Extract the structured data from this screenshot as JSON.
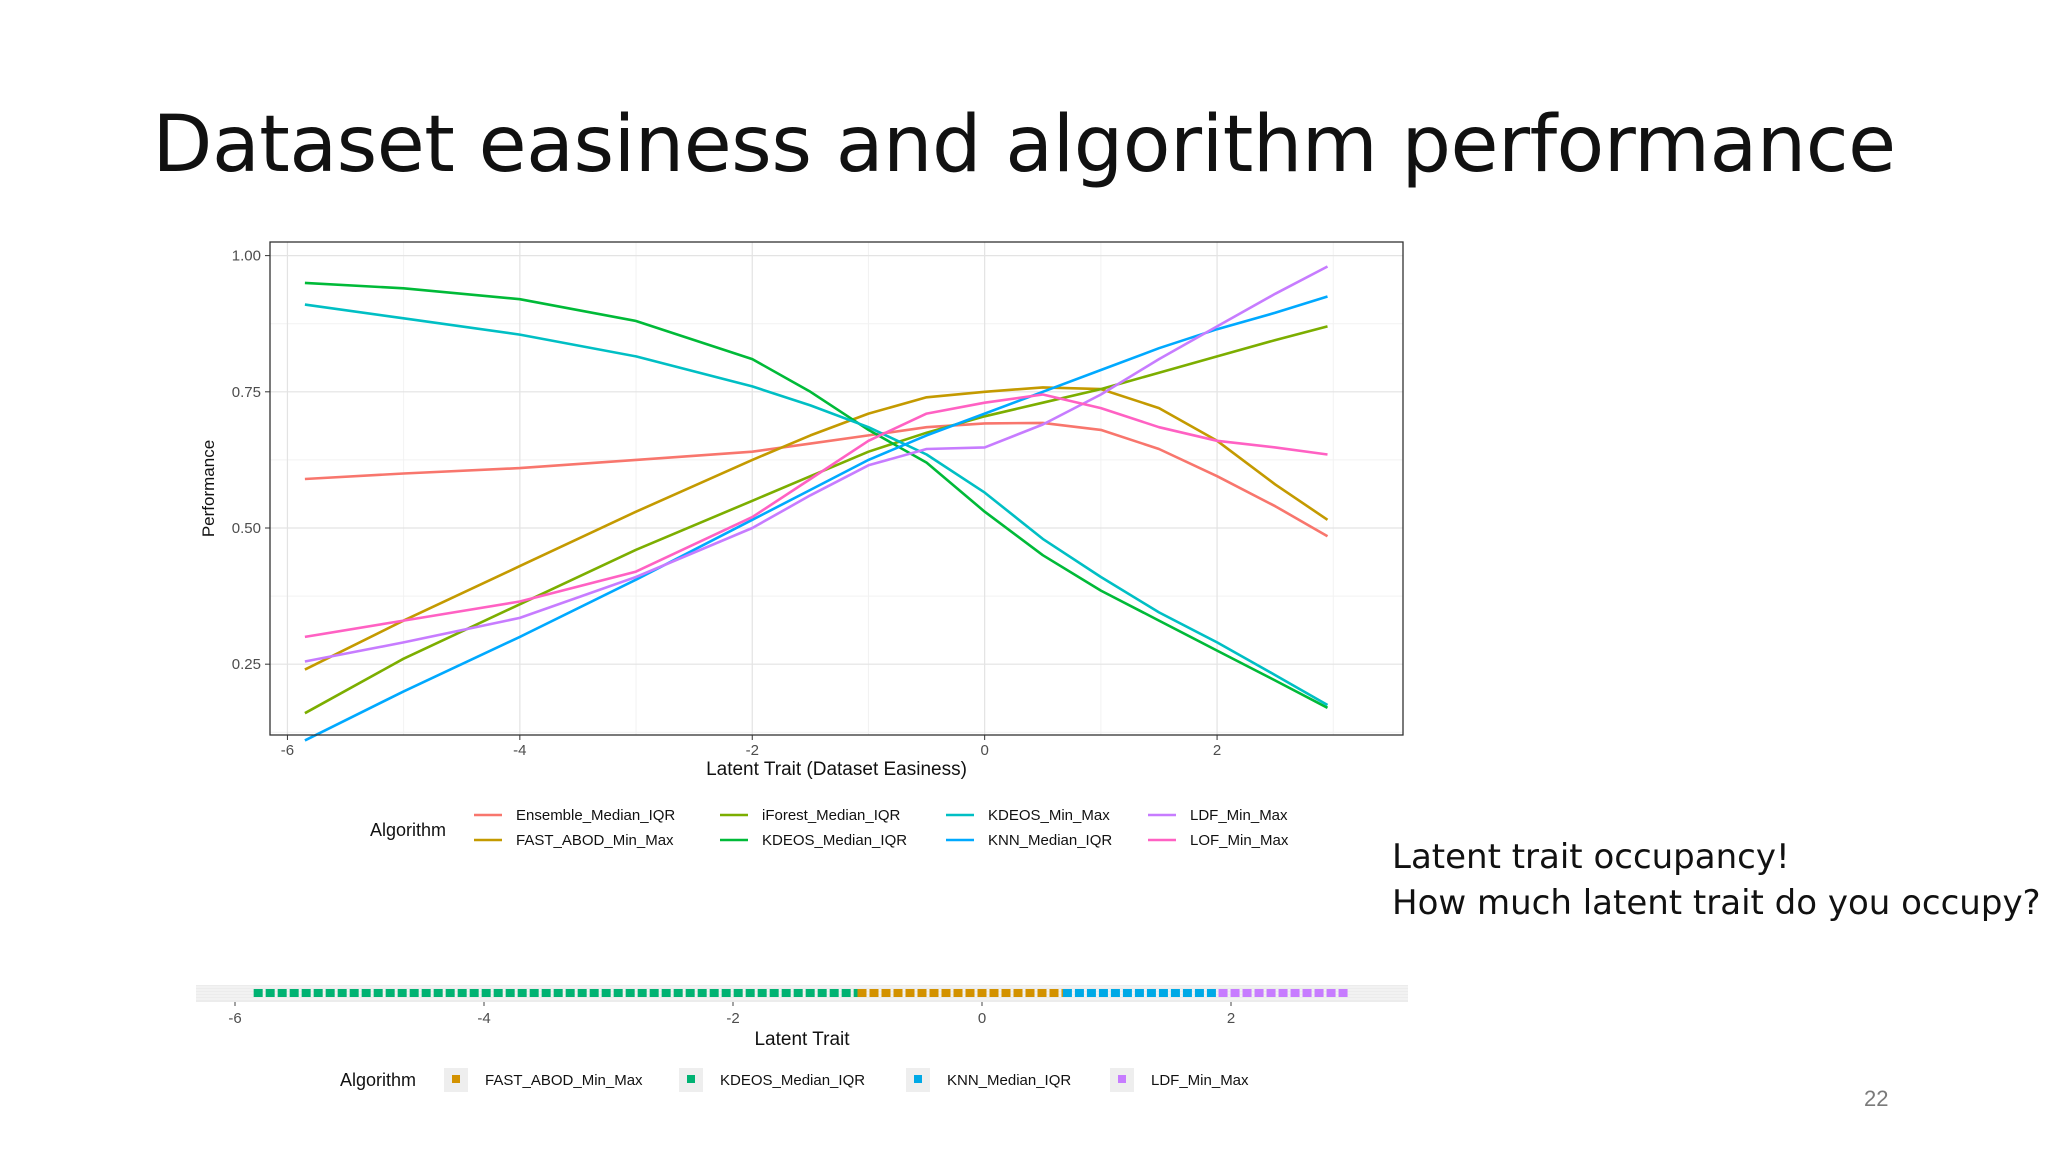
{
  "slide": {
    "title": "Dataset easiness and algorithm performance",
    "note_line1": "Latent trait occupancy!",
    "note_line2": "How much latent trait do you occupy?",
    "page_number": "22"
  },
  "chart_data": [
    {
      "type": "line",
      "title": "",
      "xlabel": "Latent Trait (Dataset Easiness)",
      "ylabel": "Performance",
      "xlim": [
        -6.15,
        3.6
      ],
      "ylim": [
        0.12,
        1.025
      ],
      "x_ticks": [
        -6,
        -4,
        -2,
        0,
        2
      ],
      "y_ticks": [
        0.25,
        0.5,
        0.75,
        1.0
      ],
      "x_tick_labels": [
        "-6",
        "-4",
        "-2",
        "0",
        "2"
      ],
      "y_tick_labels": [
        "0.25",
        "0.50",
        "0.75",
        "1.00"
      ],
      "grid": true,
      "legend_position": "bottom",
      "legend_title": "Algorithm",
      "x": [
        -5.85,
        -5,
        -4,
        -3,
        -2,
        -1.5,
        -1,
        -0.5,
        0,
        0.5,
        1,
        1.5,
        2,
        2.5,
        2.95
      ],
      "series": [
        {
          "name": "Ensemble_Median_IQR",
          "color": "#F8766D",
          "values": [
            0.59,
            0.6,
            0.61,
            0.625,
            0.64,
            0.655,
            0.67,
            0.685,
            0.692,
            0.693,
            0.68,
            0.645,
            0.595,
            0.54,
            0.485
          ]
        },
        {
          "name": "FAST_ABOD_Min_Max",
          "color": "#C49A00",
          "values": [
            0.24,
            0.33,
            0.43,
            0.53,
            0.625,
            0.67,
            0.71,
            0.74,
            0.75,
            0.758,
            0.755,
            0.72,
            0.66,
            0.58,
            0.515
          ]
        },
        {
          "name": "iForest_Median_IQR",
          "color": "#7CAE00",
          "values": [
            0.16,
            0.26,
            0.36,
            0.46,
            0.55,
            0.595,
            0.64,
            0.675,
            0.705,
            0.73,
            0.755,
            0.785,
            0.815,
            0.845,
            0.87
          ]
        },
        {
          "name": "KDEOS_Median_IQR",
          "color": "#00BA38",
          "values": [
            0.95,
            0.94,
            0.92,
            0.88,
            0.81,
            0.75,
            0.68,
            0.62,
            0.53,
            0.45,
            0.385,
            0.33,
            0.275,
            0.22,
            0.17
          ]
        },
        {
          "name": "KDEOS_Min_Max",
          "color": "#00BFC4",
          "values": [
            0.91,
            0.885,
            0.855,
            0.815,
            0.76,
            0.725,
            0.685,
            0.635,
            0.565,
            0.48,
            0.41,
            0.345,
            0.29,
            0.23,
            0.175
          ]
        },
        {
          "name": "KNN_Median_IQR",
          "color": "#00A9FF",
          "values": [
            0.11,
            0.2,
            0.3,
            0.405,
            0.515,
            0.57,
            0.625,
            0.67,
            0.71,
            0.75,
            0.79,
            0.83,
            0.865,
            0.895,
            0.925
          ]
        },
        {
          "name": "LDF_Min_Max",
          "color": "#C77CFF",
          "values": [
            0.255,
            0.29,
            0.335,
            0.41,
            0.5,
            0.56,
            0.615,
            0.645,
            0.648,
            0.69,
            0.745,
            0.81,
            0.87,
            0.93,
            0.98
          ]
        },
        {
          "name": "LOF_Min_Max",
          "color": "#FF61C3",
          "values": [
            0.3,
            0.33,
            0.365,
            0.42,
            0.52,
            0.59,
            0.66,
            0.71,
            0.73,
            0.745,
            0.72,
            0.685,
            0.66,
            0.648,
            0.635
          ]
        }
      ]
    },
    {
      "type": "bar",
      "title": "",
      "xlabel": "Latent Trait",
      "ylabel": "",
      "xlim": [
        -6.15,
        3.6
      ],
      "x_ticks": [
        -6,
        -4,
        -2,
        0,
        2
      ],
      "x_tick_labels": [
        "-6",
        "-4",
        "-2",
        "0",
        "2"
      ],
      "legend_position": "bottom",
      "legend_title": "Algorithm",
      "segments": [
        {
          "name": "KDEOS_Median_IQR",
          "color": "#00B272",
          "from": -5.85,
          "to": -1.0
        },
        {
          "name": "FAST_ABOD_Min_Max",
          "color": "#D39200",
          "from": -1.0,
          "to": 0.65
        },
        {
          "name": "KNN_Median_IQR",
          "color": "#00A9E6",
          "from": 0.65,
          "to": 1.9
        },
        {
          "name": "LDF_Min_Max",
          "color": "#C77CFF",
          "from": 1.9,
          "to": 2.95
        }
      ],
      "legend": [
        {
          "name": "FAST_ABOD_Min_Max",
          "color": "#D39200"
        },
        {
          "name": "KDEOS_Median_IQR",
          "color": "#00B272"
        },
        {
          "name": "KNN_Median_IQR",
          "color": "#00A9E6"
        },
        {
          "name": "LDF_Min_Max",
          "color": "#C77CFF"
        }
      ]
    }
  ]
}
